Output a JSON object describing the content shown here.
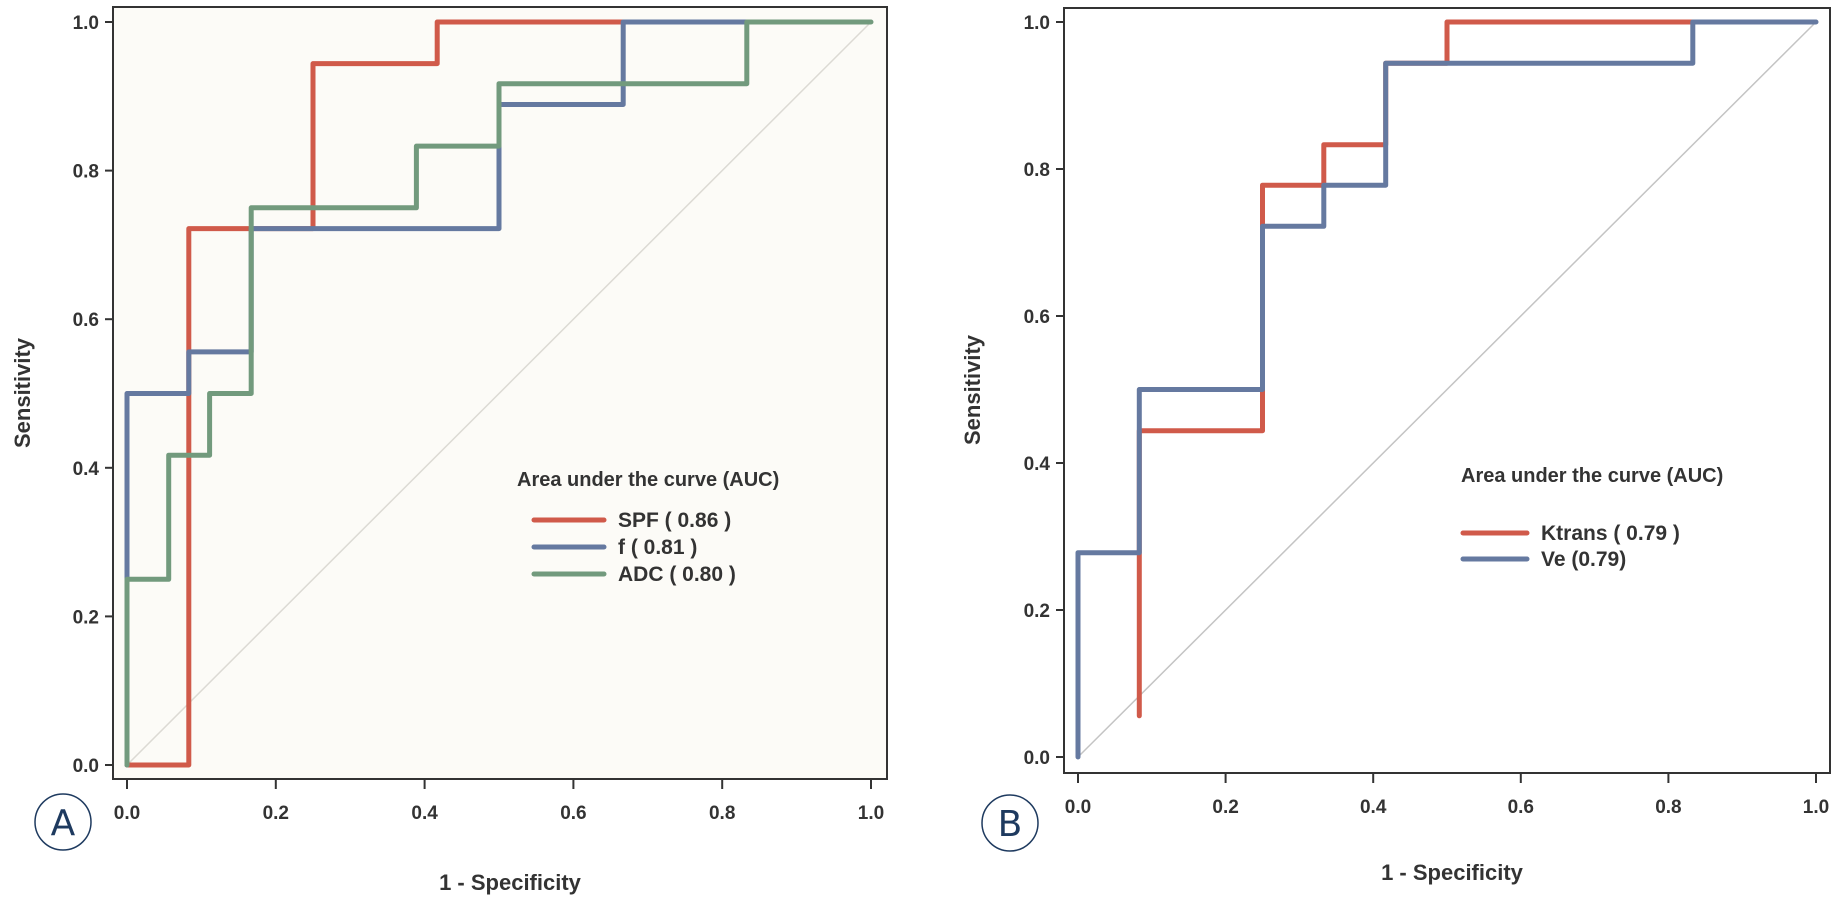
{
  "chart_data": [
    {
      "id": "A",
      "type": "line",
      "step": true,
      "panel_label": "A",
      "title": "",
      "xlabel": "1 - Specificity",
      "ylabel": "Sensitivity",
      "xlim": [
        0,
        1
      ],
      "ylim": [
        0,
        1
      ],
      "xticks": [
        "0.0",
        "0.2",
        "0.4",
        "0.6",
        "0.8",
        "1.0"
      ],
      "yticks": [
        "0.0",
        "0.2",
        "0.4",
        "0.6",
        "0.8",
        "1.0"
      ],
      "background": "#fcfbf7",
      "grid": false,
      "reference_line": {
        "from": [
          0,
          0
        ],
        "to": [
          1,
          1
        ],
        "color": "#dcdad4"
      },
      "legend": {
        "title": "Area under the curve (AUC)",
        "position": "center-right"
      },
      "series": [
        {
          "name": "SPF",
          "label": "SPF ( 0.86 )",
          "auc": 0.86,
          "color": "#d05a4a",
          "points": [
            [
              0,
              0
            ],
            [
              0.083,
              0
            ],
            [
              0.083,
              0.722
            ],
            [
              0.25,
              0.722
            ],
            [
              0.25,
              0.944
            ],
            [
              0.417,
              0.944
            ],
            [
              0.417,
              1.0
            ],
            [
              0.667,
              1.0
            ]
          ]
        },
        {
          "name": "f",
          "label": "f ( 0.81 )",
          "auc": 0.81,
          "color": "#6579a0",
          "points": [
            [
              0,
              0
            ],
            [
              0,
              0.5
            ],
            [
              0.083,
              0.5
            ],
            [
              0.083,
              0.556
            ],
            [
              0.167,
              0.556
            ],
            [
              0.167,
              0.722
            ],
            [
              0.5,
              0.722
            ],
            [
              0.5,
              0.889
            ],
            [
              0.667,
              0.889
            ],
            [
              0.667,
              1.0
            ],
            [
              0.833,
              1.0
            ]
          ]
        },
        {
          "name": "ADC",
          "label": "ADC ( 0.80 )",
          "auc": 0.8,
          "color": "#729a7d",
          "points": [
            [
              0,
              0
            ],
            [
              0,
              0.25
            ],
            [
              0.056,
              0.25
            ],
            [
              0.056,
              0.417
            ],
            [
              0.111,
              0.417
            ],
            [
              0.111,
              0.5
            ],
            [
              0.167,
              0.5
            ],
            [
              0.167,
              0.75
            ],
            [
              0.389,
              0.75
            ],
            [
              0.389,
              0.833
            ],
            [
              0.5,
              0.833
            ],
            [
              0.5,
              0.917
            ],
            [
              0.833,
              0.917
            ],
            [
              0.833,
              1.0
            ],
            [
              1.0,
              1.0
            ]
          ]
        }
      ]
    },
    {
      "id": "B",
      "type": "line",
      "step": true,
      "panel_label": "B",
      "title": "",
      "xlabel": "1 - Specificity",
      "ylabel": "Sensitivity",
      "xlim": [
        0,
        1
      ],
      "ylim": [
        0,
        1
      ],
      "xticks": [
        "0.0",
        "0.2",
        "0.4",
        "0.6",
        "0.8",
        "1.0"
      ],
      "yticks": [
        "0.0",
        "0.2",
        "0.4",
        "0.6",
        "0.8",
        "1.0"
      ],
      "background": "#ffffff",
      "grid": false,
      "reference_line": {
        "from": [
          0,
          0
        ],
        "to": [
          1,
          1
        ],
        "color": "#c4c4c4"
      },
      "legend": {
        "title": "Area under the curve (AUC)",
        "position": "center-right"
      },
      "series": [
        {
          "name": "Ktrans",
          "label": "Ktrans ( 0.79 )",
          "auc": 0.79,
          "color": "#d05a4a",
          "points": [
            [
              0.083,
              0.056
            ],
            [
              0.083,
              0.444
            ],
            [
              0.25,
              0.444
            ],
            [
              0.25,
              0.778
            ],
            [
              0.333,
              0.778
            ],
            [
              0.333,
              0.833
            ],
            [
              0.417,
              0.833
            ],
            [
              0.417,
              0.944
            ],
            [
              0.5,
              0.944
            ],
            [
              0.5,
              1.0
            ],
            [
              0.833,
              1.0
            ]
          ]
        },
        {
          "name": "Ve",
          "label": "Ve (0.79)",
          "auc": 0.79,
          "color": "#6579a0",
          "points": [
            [
              0,
              0
            ],
            [
              0,
              0.278
            ],
            [
              0.083,
              0.278
            ],
            [
              0.083,
              0.5
            ],
            [
              0.25,
              0.5
            ],
            [
              0.25,
              0.722
            ],
            [
              0.333,
              0.722
            ],
            [
              0.333,
              0.778
            ],
            [
              0.417,
              0.778
            ],
            [
              0.417,
              0.944
            ],
            [
              0.833,
              0.944
            ],
            [
              0.833,
              1.0
            ],
            [
              1.0,
              1.0
            ]
          ]
        }
      ]
    }
  ]
}
